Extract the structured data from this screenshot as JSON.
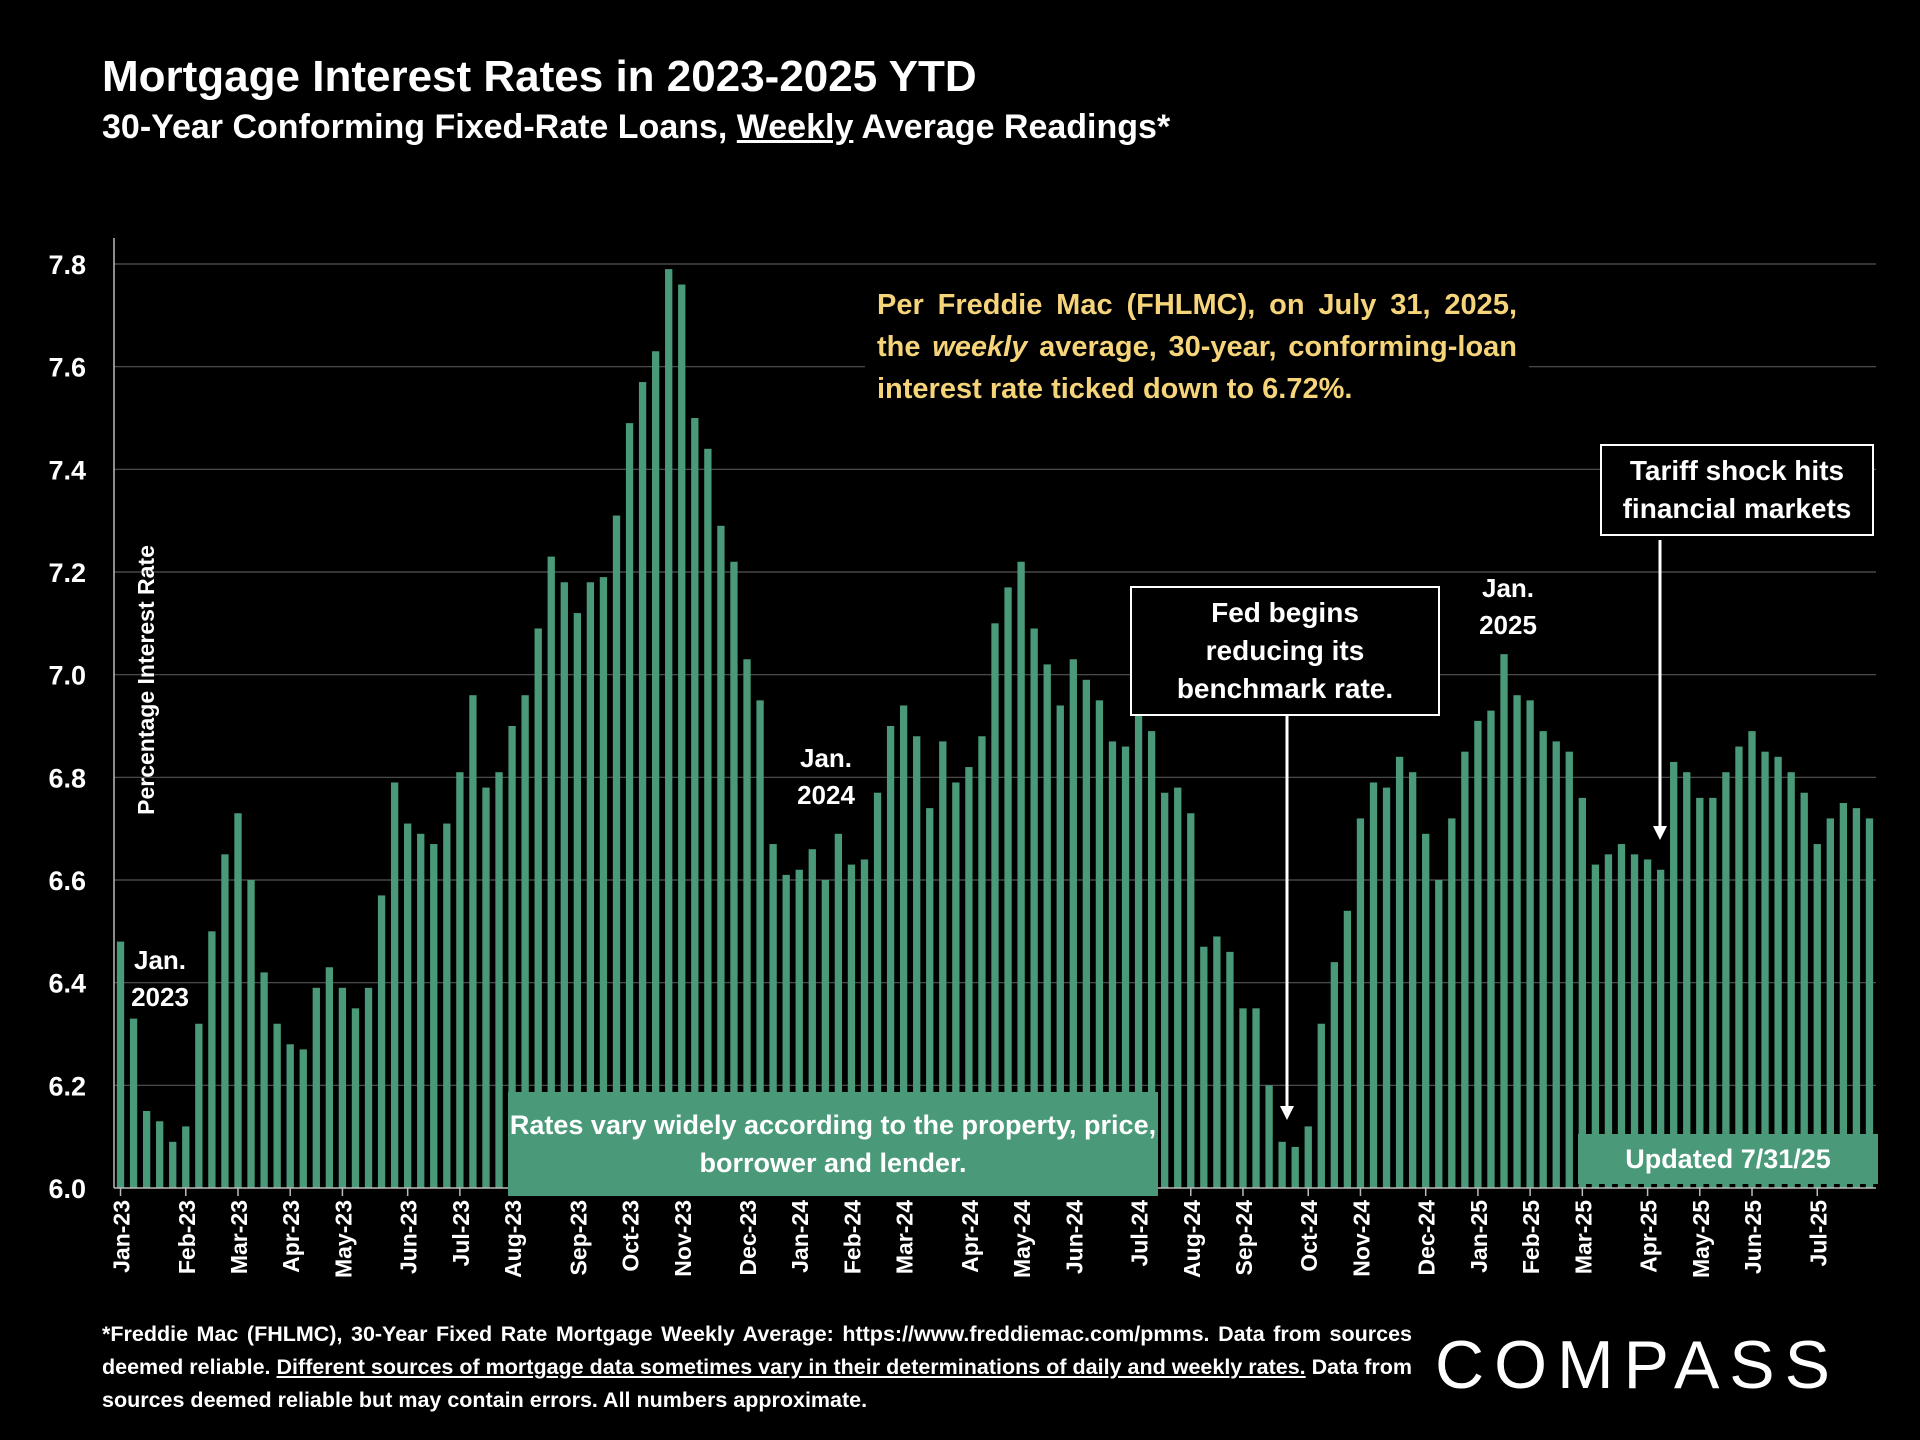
{
  "header": {
    "title": "Mortgage Interest Rates in 2023-2025 YTD",
    "subtitle_pre": "30-Year Conforming Fixed-Rate Loans, ",
    "subtitle_underlined": "Weekly",
    "subtitle_post": " Average Readings*"
  },
  "annotations": {
    "freddie_note_1": "Per Freddie Mac (FHLMC), on July 31, 2025, the ",
    "freddie_note_italic": "weekly",
    "freddie_note_2": " average, 30-year, conforming-loan interest rate ticked down to 6.72%.",
    "fed_note": "Fed begins reducing its benchmark rate.",
    "tariff_note": "Tariff shock hits financial markets",
    "rates_vary": "Rates vary widely according to the property, price, borrower and lender.",
    "updated": "Updated 7/31/25",
    "jan_2023_a": "Jan.",
    "jan_2023_b": "2023",
    "jan_2024_a": "Jan.",
    "jan_2024_b": "2024",
    "jan_2025_a": "Jan.",
    "jan_2025_b": "2025"
  },
  "footer": {
    "line1": "*Freddie Mac (FHLMC), 30-Year Fixed Rate Mortgage Weekly Average:  https://www.freddiemac.com/pmms.",
    "line2_pre": "Data from sources deemed reliable. ",
    "line2_underlined": "Different sources of mortgage data sometimes vary in their determinations of daily and weekly rates.",
    "line2_post": " Data from sources deemed reliable but may contain errors. All numbers approximate."
  },
  "logo": {
    "text": "COMPASS"
  },
  "colors": {
    "bar": "#4a9a79",
    "background": "#000000",
    "note": "#f5d47a",
    "grid": "#555555"
  },
  "chart_data": {
    "type": "bar",
    "title": "Mortgage Interest Rates in 2023-2025 YTD",
    "ylabel": "Percentage Interest  Rate",
    "ylim": [
      6.0,
      7.85
    ],
    "yticks": [
      "6.0",
      "6.2",
      "6.4",
      "6.6",
      "6.8",
      "7.0",
      "7.2",
      "7.4",
      "7.6",
      "7.8"
    ],
    "grid": true,
    "month_labels": [
      "Jan-23",
      "Feb-23",
      "Mar-23",
      "Apr-23",
      "May-23",
      "Jun-23",
      "Jul-23",
      "Aug-23",
      "Sep-23",
      "Oct-23",
      "Nov-23",
      "Dec-23",
      "Jan-24",
      "Feb-24",
      "Mar-24",
      "Apr-24",
      "May-24",
      "Jun-24",
      "Jul-24",
      "Aug-24",
      "Sep-24",
      "Oct-24",
      "Nov-24",
      "Dec-24",
      "Jan-25",
      "Feb-25",
      "Mar-25",
      "Apr-25",
      "May-25",
      "Jun-25",
      "Jul-25"
    ],
    "month_start_index": [
      0,
      5,
      9,
      13,
      17,
      22,
      26,
      30,
      35,
      39,
      43,
      48,
      52,
      56,
      60,
      65,
      69,
      73,
      78,
      82,
      86,
      91,
      95,
      100,
      104,
      108,
      112,
      117,
      121,
      125,
      130
    ],
    "values": [
      6.48,
      6.33,
      6.15,
      6.13,
      6.09,
      6.12,
      6.32,
      6.5,
      6.65,
      6.73,
      6.6,
      6.42,
      6.32,
      6.28,
      6.27,
      6.39,
      6.43,
      6.39,
      6.35,
      6.39,
      6.57,
      6.79,
      6.71,
      6.69,
      6.67,
      6.71,
      6.81,
      6.96,
      6.78,
      6.81,
      6.9,
      6.96,
      7.09,
      7.23,
      7.18,
      7.12,
      7.18,
      7.19,
      7.31,
      7.49,
      7.57,
      7.63,
      7.79,
      7.76,
      7.5,
      7.44,
      7.29,
      7.22,
      7.03,
      6.95,
      6.67,
      6.61,
      6.62,
      6.66,
      6.6,
      6.69,
      6.63,
      6.64,
      6.77,
      6.9,
      6.94,
      6.88,
      6.74,
      6.87,
      6.79,
      6.82,
      6.88,
      7.1,
      7.17,
      7.22,
      7.09,
      7.02,
      6.94,
      7.03,
      6.99,
      6.95,
      6.87,
      6.86,
      6.95,
      6.89,
      6.77,
      6.78,
      6.73,
      6.47,
      6.49,
      6.46,
      6.35,
      6.35,
      6.2,
      6.09,
      6.08,
      6.12,
      6.32,
      6.44,
      6.54,
      6.72,
      6.79,
      6.78,
      6.84,
      6.81,
      6.69,
      6.6,
      6.72,
      6.85,
      6.91,
      6.93,
      7.04,
      6.96,
      6.95,
      6.89,
      6.87,
      6.85,
      6.76,
      6.63,
      6.65,
      6.67,
      6.65,
      6.64,
      6.62,
      6.83,
      6.81,
      6.76,
      6.76,
      6.81,
      6.86,
      6.89,
      6.85,
      6.84,
      6.81,
      6.77,
      6.67,
      6.72,
      6.75,
      6.74,
      6.72
    ]
  }
}
